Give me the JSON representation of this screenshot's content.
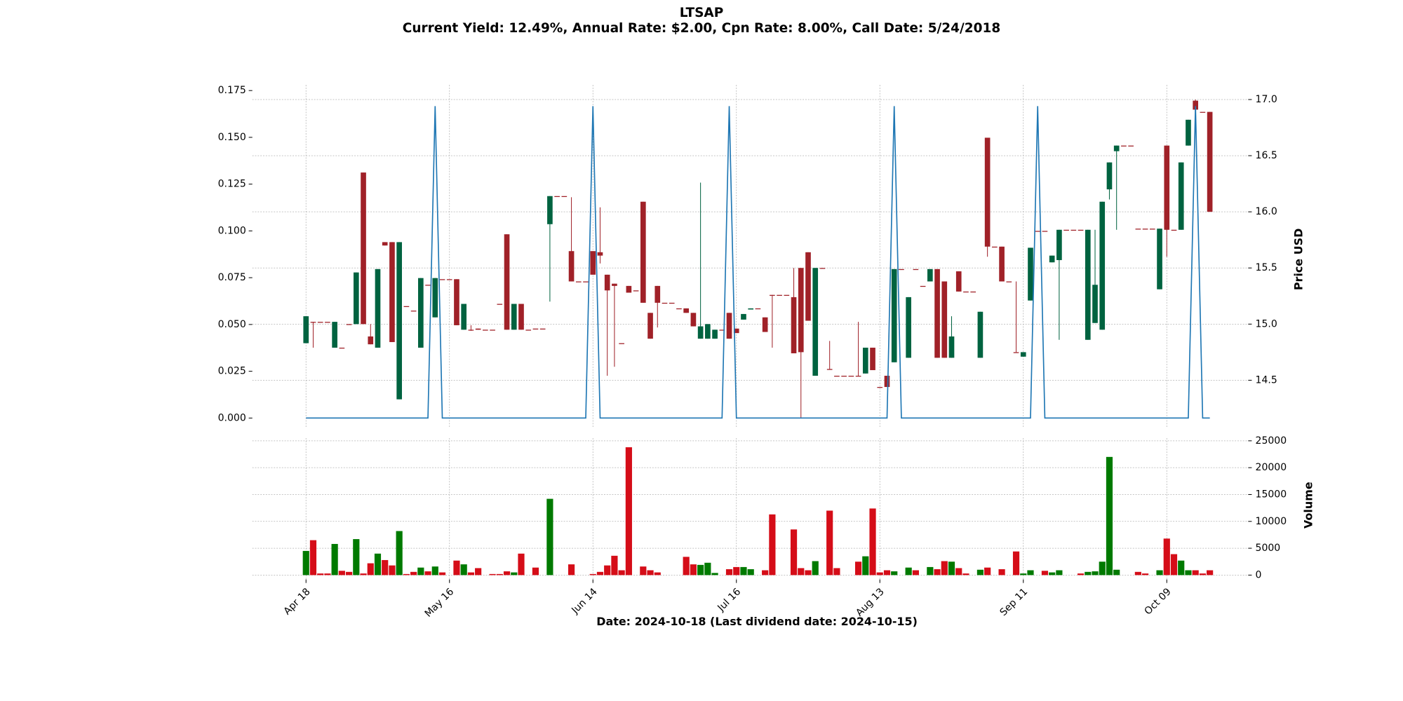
{
  "chart_data": {
    "type": "candlestick",
    "title": "LTSAP",
    "subtitle": "Current Yield: 12.49%, Annual Rate: $2.00, Cpn Rate: 8.00%, Call Date: 5/24/2018",
    "x_label": "Date: 2024-10-18   (Last dividend date: 2024-10-15)",
    "categories": [
      "Apr 18",
      null,
      null,
      null,
      null,
      null,
      null,
      null,
      null,
      null,
      null,
      null,
      null,
      null,
      null,
      null,
      null,
      null,
      null,
      null,
      "May 16",
      null,
      null,
      null,
      null,
      null,
      null,
      null,
      null,
      null,
      null,
      null,
      null,
      null,
      null,
      null,
      null,
      null,
      null,
      null,
      "Jun 14",
      null,
      null,
      null,
      null,
      null,
      null,
      null,
      null,
      null,
      null,
      null,
      null,
      null,
      null,
      null,
      null,
      null,
      null,
      null,
      "Jul 16",
      null,
      null,
      null,
      null,
      null,
      null,
      null,
      null,
      null,
      null,
      null,
      null,
      null,
      null,
      null,
      null,
      null,
      null,
      null,
      "Aug 13",
      null,
      null,
      null,
      null,
      null,
      null,
      null,
      null,
      null,
      null,
      null,
      null,
      null,
      null,
      null,
      null,
      null,
      null,
      null,
      "Sep 11",
      null,
      null,
      null,
      null,
      null,
      null,
      null,
      null,
      null,
      null,
      null,
      null,
      null,
      null,
      null,
      null,
      null,
      null,
      null,
      "Oct 09",
      null,
      null,
      null,
      null,
      null,
      null
    ],
    "open": [
      14.83,
      15.02,
      15.02,
      15.02,
      14.79,
      14.79,
      15.0,
      15.0,
      16.35,
      14.89,
      14.79,
      15.73,
      15.73,
      14.33,
      15.16,
      15.12,
      14.79,
      15.35,
      15.06,
      15.4,
      15.4,
      15.4,
      14.95,
      14.95,
      14.96,
      14.95,
      14.95,
      15.18,
      15.8,
      14.95,
      15.18,
      14.95,
      14.96,
      14.96,
      15.89,
      16.14,
      16.14,
      15.65,
      15.38,
      15.38,
      15.65,
      15.64,
      15.44,
      15.36,
      14.83,
      15.34,
      15.3,
      16.09,
      15.1,
      15.34,
      15.19,
      15.19,
      15.14,
      15.14,
      15.1,
      14.87,
      14.87,
      14.87,
      14.95,
      15.1,
      14.96,
      15.04,
      15.13,
      15.14,
      15.06,
      15.26,
      15.26,
      15.26,
      15.24,
      15.5,
      15.64,
      14.54,
      15.5,
      14.6,
      14.54,
      14.54,
      14.54,
      14.54,
      14.56,
      14.79,
      14.44,
      14.54,
      14.66,
      15.49,
      14.7,
      15.49,
      15.34,
      15.38,
      15.49,
      15.38,
      14.7,
      15.47,
      15.29,
      15.29,
      14.7,
      16.66,
      15.69,
      15.69,
      15.38,
      14.75,
      14.71,
      15.21,
      15.83,
      15.83,
      15.55,
      15.57,
      15.84,
      15.84,
      15.84,
      14.86,
      15.01,
      14.95,
      16.2,
      16.54,
      16.59,
      16.59,
      15.85,
      15.85,
      15.85,
      15.31,
      16.59,
      15.84,
      15.84,
      16.59,
      16.99,
      16.89,
      16.89
    ],
    "high": [
      15.07,
      15.02,
      15.02,
      15.02,
      15.02,
      14.79,
      15.0,
      15.46,
      16.35,
      15.0,
      15.49,
      15.73,
      15.73,
      15.73,
      15.16,
      15.12,
      15.41,
      15.35,
      15.41,
      15.4,
      15.4,
      15.4,
      15.18,
      14.99,
      14.96,
      14.95,
      14.95,
      15.18,
      15.8,
      15.18,
      15.18,
      14.95,
      14.96,
      14.96,
      16.14,
      16.14,
      16.14,
      16.13,
      15.38,
      15.38,
      15.65,
      16.04,
      15.44,
      15.36,
      14.83,
      15.34,
      15.3,
      16.09,
      15.1,
      15.34,
      15.19,
      15.19,
      15.14,
      15.14,
      15.1,
      16.26,
      15.0,
      14.95,
      14.95,
      15.1,
      14.96,
      15.09,
      15.14,
      15.14,
      15.06,
      15.26,
      15.26,
      15.26,
      15.5,
      15.5,
      15.64,
      15.5,
      15.5,
      14.85,
      14.54,
      14.54,
      14.54,
      15.02,
      14.79,
      14.79,
      14.44,
      14.54,
      15.49,
      15.49,
      15.24,
      15.49,
      15.34,
      15.49,
      15.49,
      15.38,
      15.07,
      15.47,
      15.29,
      15.29,
      15.11,
      16.66,
      15.69,
      15.69,
      15.38,
      15.38,
      14.75,
      15.68,
      15.83,
      15.83,
      15.61,
      15.84,
      15.84,
      15.84,
      15.84,
      15.84,
      15.84,
      16.09,
      16.44,
      16.59,
      16.59,
      16.59,
      15.85,
      15.85,
      15.85,
      15.85,
      16.59,
      15.84,
      16.44,
      16.82,
      17.0,
      16.89,
      16.89
    ],
    "low": [
      14.83,
      14.79,
      15.02,
      15.02,
      14.79,
      14.79,
      15.0,
      15.0,
      15.0,
      14.82,
      14.79,
      15.7,
      14.84,
      14.33,
      15.16,
      15.12,
      14.79,
      15.35,
      15.06,
      15.4,
      15.4,
      14.99,
      14.95,
      14.94,
      14.95,
      14.95,
      14.95,
      15.18,
      14.95,
      14.95,
      14.95,
      14.95,
      14.96,
      14.96,
      15.2,
      16.14,
      16.14,
      15.38,
      15.38,
      15.38,
      15.44,
      15.54,
      14.54,
      14.62,
      14.83,
      15.28,
      15.3,
      15.19,
      14.87,
      14.97,
      15.19,
      15.19,
      15.14,
      15.1,
      14.98,
      14.87,
      14.87,
      14.87,
      14.95,
      14.87,
      14.92,
      15.04,
      15.13,
      15.14,
      14.93,
      14.79,
      15.26,
      15.26,
      14.74,
      14.16,
      15.03,
      14.54,
      15.5,
      14.6,
      14.54,
      14.54,
      14.54,
      14.54,
      14.56,
      14.59,
      14.44,
      14.44,
      14.66,
      15.49,
      14.7,
      15.49,
      15.34,
      15.38,
      14.7,
      14.7,
      14.7,
      15.29,
      15.29,
      15.29,
      14.7,
      15.6,
      15.69,
      15.38,
      15.38,
      14.75,
      14.71,
      15.21,
      15.83,
      15.83,
      15.55,
      14.86,
      15.84,
      15.84,
      15.84,
      14.86,
      15.01,
      14.95,
      16.11,
      15.84,
      16.59,
      16.59,
      15.85,
      15.85,
      15.85,
      15.31,
      15.6,
      15.84,
      15.84,
      16.59,
      16.91,
      16.89,
      16.0
    ],
    "close": [
      15.07,
      15.02,
      15.02,
      15.02,
      15.02,
      14.79,
      15.0,
      15.46,
      15.0,
      14.82,
      15.49,
      15.7,
      14.84,
      15.73,
      15.16,
      15.12,
      15.41,
      15.35,
      15.41,
      15.4,
      15.4,
      14.99,
      15.18,
      14.95,
      14.95,
      14.95,
      14.95,
      15.18,
      14.95,
      15.18,
      14.95,
      14.95,
      14.96,
      14.96,
      16.14,
      16.14,
      16.14,
      15.38,
      15.38,
      15.38,
      15.44,
      15.61,
      15.3,
      15.34,
      14.83,
      15.28,
      15.3,
      15.19,
      14.87,
      15.19,
      15.19,
      15.19,
      15.14,
      15.1,
      14.98,
      14.98,
      15.0,
      14.95,
      14.95,
      14.87,
      14.92,
      15.09,
      15.14,
      15.14,
      14.93,
      15.26,
      15.26,
      15.26,
      14.74,
      14.75,
      15.03,
      15.5,
      15.5,
      14.6,
      14.54,
      14.54,
      14.54,
      14.54,
      14.79,
      14.59,
      14.44,
      14.44,
      15.49,
      15.49,
      15.24,
      15.49,
      15.34,
      15.49,
      14.7,
      14.7,
      14.89,
      15.29,
      15.29,
      15.29,
      15.11,
      15.69,
      15.69,
      15.38,
      15.38,
      14.75,
      14.75,
      15.68,
      15.83,
      15.83,
      15.61,
      15.84,
      15.84,
      15.84,
      15.84,
      15.84,
      15.35,
      16.09,
      16.44,
      16.59,
      16.59,
      16.59,
      15.85,
      15.85,
      15.85,
      15.85,
      15.84,
      15.84,
      16.44,
      16.82,
      16.91,
      16.89,
      16.0
    ],
    "up_color": "#006340",
    "down_color": "#a02128",
    "y2_label": "Price USD",
    "y2lim": [
      14.08,
      17.13
    ],
    "y2ticks": [
      {
        "value": 14.5,
        "label": "14.5"
      },
      {
        "value": 15,
        "label": "15.0"
      },
      {
        "value": 15.5,
        "label": "15.5"
      },
      {
        "value": 16,
        "label": "16.0"
      },
      {
        "value": 16.5,
        "label": "16.5"
      },
      {
        "value": 17,
        "label": "17.0"
      }
    ],
    "line_values": [
      0,
      0,
      0,
      0,
      0,
      0,
      0,
      0,
      0,
      0,
      0,
      0,
      0,
      0,
      0,
      0,
      0,
      0,
      0.1667,
      0,
      0,
      0,
      0,
      0,
      0,
      0,
      0,
      0,
      0,
      0,
      0,
      0,
      0,
      0,
      0,
      0,
      0,
      0,
      0,
      0,
      0.1667,
      0,
      0,
      0,
      0,
      0,
      0,
      0,
      0,
      0,
      0,
      0,
      0,
      0,
      0,
      0,
      0,
      0,
      0,
      0.1667,
      0,
      0,
      0,
      0,
      0,
      0,
      0,
      0,
      0,
      0,
      0,
      0,
      0,
      0,
      0,
      0,
      0,
      0,
      0,
      0,
      0,
      0,
      0.1667,
      0,
      0,
      0,
      0,
      0,
      0,
      0,
      0,
      0,
      0,
      0,
      0,
      0,
      0,
      0,
      0,
      0,
      0,
      0,
      0.1667,
      0,
      0,
      0,
      0,
      0,
      0,
      0,
      0,
      0,
      0,
      0,
      0,
      0,
      0,
      0,
      0,
      0,
      0,
      0,
      0,
      0,
      0.1667,
      0,
      0
    ],
    "line_color": "#1f77b4",
    "ylim": [
      -0.005,
      0.178
    ],
    "yticks": [
      {
        "value": 0,
        "label": "0.000"
      },
      {
        "value": 0.025,
        "label": "0.025"
      },
      {
        "value": 0.05,
        "label": "0.050"
      },
      {
        "value": 0.075,
        "label": "0.075"
      },
      {
        "value": 0.1,
        "label": "0.100"
      },
      {
        "value": 0.125,
        "label": "0.125"
      },
      {
        "value": 0.15,
        "label": "0.150"
      },
      {
        "value": 0.175,
        "label": "0.175"
      }
    ],
    "volume": [
      4500,
      6500,
      300,
      300,
      5800,
      800,
      600,
      6700,
      300,
      2200,
      4000,
      2800,
      1800,
      8200,
      200,
      600,
      1400,
      700,
      1600,
      500,
      0,
      2700,
      2000,
      500,
      1300,
      0,
      200,
      200,
      700,
      500,
      4000,
      0,
      1400,
      0,
      14200,
      0,
      0,
      2000,
      0,
      0,
      200,
      600,
      1800,
      3600,
      900,
      23800,
      0,
      1600,
      900,
      500,
      0,
      0,
      0,
      3400,
      2000,
      1900,
      2300,
      400,
      0,
      1100,
      1500,
      1500,
      1100,
      0,
      900,
      11300,
      0,
      0,
      8500,
      1300,
      900,
      2600,
      0,
      12000,
      1300,
      0,
      0,
      2500,
      3500,
      12400,
      500,
      900,
      700,
      0,
      1400,
      900,
      0,
      1500,
      1100,
      2600,
      2500,
      1300,
      300,
      0,
      1000,
      1400,
      0,
      1100,
      0,
      4400,
      300,
      900,
      0,
      800,
      500,
      900,
      0,
      0,
      300,
      600,
      700,
      2500,
      22000,
      1000,
      0,
      0,
      600,
      300,
      0,
      900,
      6800,
      3900,
      2700,
      900,
      900,
      300,
      900
    ],
    "volume_up_color": "#007a00",
    "volume_down_color": "#d50d18",
    "volume_label": "Volume",
    "volume_ylim": [
      -800,
      25500
    ],
    "volume_yticks": [
      0,
      5000,
      10000,
      15000,
      20000,
      25000
    ],
    "grid": true
  }
}
